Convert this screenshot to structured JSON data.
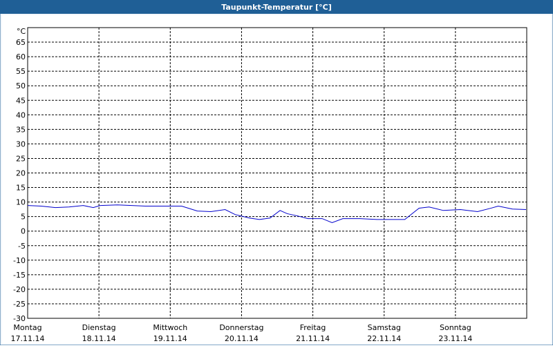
{
  "chart_data": {
    "type": "line",
    "title": "Taupunkt-Temperatur [°C]",
    "y_unit": "°C",
    "x": [
      0,
      0.19,
      0.39,
      0.58,
      0.78,
      0.92,
      1.02,
      1.26,
      1.46,
      1.65,
      1.84,
      2.16,
      2.38,
      2.57,
      2.77,
      2.91,
      3.11,
      3.25,
      3.4,
      3.54,
      3.64,
      3.79,
      3.93,
      4.13,
      4.27,
      4.42,
      4.66,
      4.9,
      5.29,
      5.49,
      5.63,
      5.83,
      6.07,
      6.31,
      6.5,
      6.6,
      6.8,
      6.99
    ],
    "series": [
      {
        "color": "#0000cc",
        "values": [
          8.8,
          8.6,
          8.1,
          8.3,
          8.8,
          8.1,
          8.8,
          9,
          8.8,
          8.6,
          8.6,
          8.6,
          6.9,
          6.7,
          7.4,
          5.7,
          4.5,
          4,
          4.5,
          7.1,
          6,
          5.2,
          4.3,
          4.3,
          2.9,
          4.3,
          4.3,
          4,
          4,
          7.9,
          8.3,
          7.1,
          7.4,
          6.7,
          7.9,
          8.6,
          7.6,
          7.4
        ]
      }
    ],
    "xlim": [
      0,
      7
    ],
    "xticks": [
      {
        "value": 0,
        "label": "Montag",
        "date": "17.11.14"
      },
      {
        "value": 1,
        "label": "Dienstag",
        "date": "18.11.14"
      },
      {
        "value": 2,
        "label": "Mittwoch",
        "date": "19.11.14"
      },
      {
        "value": 3,
        "label": "Donnerstag",
        "date": "20.11.14"
      },
      {
        "value": 4,
        "label": "Freitag",
        "date": "21.11.14"
      },
      {
        "value": 5,
        "label": "Samstag",
        "date": "22.11.14"
      },
      {
        "value": 6,
        "label": "Sonntag",
        "date": "23.11.14"
      }
    ],
    "ylim": [
      -30,
      70
    ],
    "yticks": [
      -30,
      -25,
      -20,
      -15,
      -10,
      -5,
      0,
      5,
      10,
      15,
      20,
      25,
      30,
      35,
      40,
      45,
      50,
      55,
      60,
      65
    ],
    "grid": true
  }
}
